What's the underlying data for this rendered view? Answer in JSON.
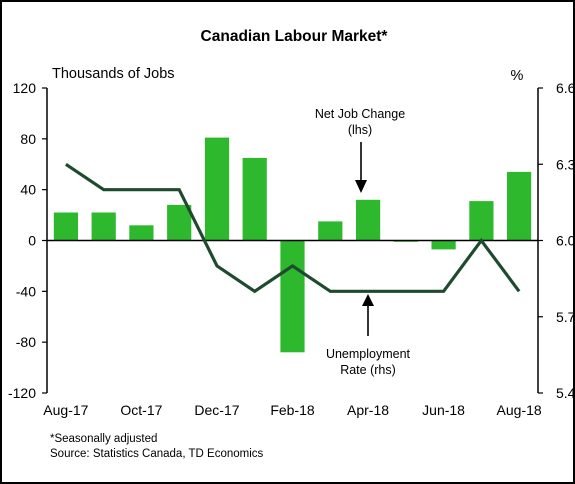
{
  "chart_data": {
    "type": "bar",
    "title": "Canadian Labour Market*",
    "ylabel_left": "Thousands of Jobs",
    "ylabel_right": "%",
    "ylim_left": [
      -120,
      120
    ],
    "ylim_right": [
      5.4,
      6.6
    ],
    "yticks_left": [
      "120",
      "80",
      "40",
      "0",
      "-40",
      "-80",
      "-120"
    ],
    "yticks_right": [
      "6.6",
      "6.3",
      "6.0",
      "5.7",
      "5.4"
    ],
    "xtick_labels": [
      "Aug-17",
      "Oct-17",
      "Dec-17",
      "Feb-18",
      "Apr-18",
      "Jun-18",
      "Aug-18"
    ],
    "categories": [
      "Aug-17",
      "Sep-17",
      "Oct-17",
      "Nov-17",
      "Dec-17",
      "Jan-18",
      "Feb-18",
      "Mar-18",
      "Apr-18",
      "May-18",
      "Jun-18",
      "Jul-18",
      "Aug-18"
    ],
    "series": [
      {
        "name": "Net Job Change (lhs)",
        "type": "bar",
        "axis": "left",
        "color": "#2db82d",
        "values": [
          22,
          22,
          12,
          28,
          81,
          65,
          -88,
          15,
          32,
          -1,
          -7,
          31,
          54
        ]
      },
      {
        "name": "Unemployment Rate (rhs)",
        "type": "line",
        "axis": "right",
        "color": "#1e4a2e",
        "values": [
          6.3,
          6.2,
          6.2,
          6.2,
          5.9,
          5.8,
          5.9,
          5.8,
          5.8,
          5.8,
          5.8,
          6.0,
          5.8
        ]
      }
    ],
    "annotations": [
      {
        "text_lines": [
          "Net Job Change",
          "(lhs)"
        ]
      },
      {
        "text_lines": [
          "Unemployment",
          "Rate (rhs)"
        ]
      }
    ],
    "footnotes": [
      "*Seasonally adjusted",
      "Source: Statistics Canada,  TD Economics"
    ],
    "grid": false
  }
}
